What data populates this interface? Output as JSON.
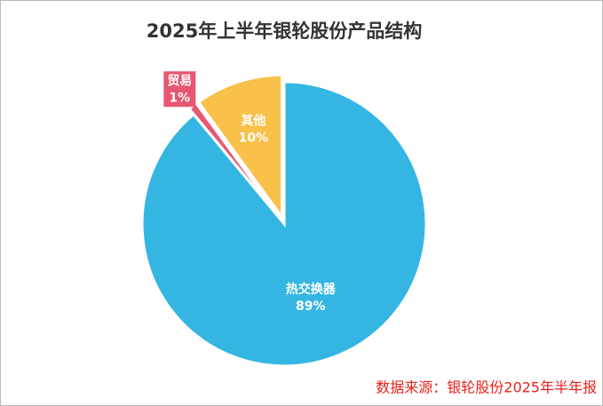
{
  "chart_data": {
    "type": "pie",
    "title": "2025年上半年银轮股份产品结构",
    "categories": [
      "热交换器",
      "贸易",
      "其他"
    ],
    "values": [
      89,
      1,
      10
    ],
    "value_labels": [
      "89%",
      "1%",
      "10%"
    ],
    "colors": [
      "#35b6e2",
      "#e8566f",
      "#f9c04a"
    ],
    "source": "数据来源：银轮股份2025年半年报"
  }
}
